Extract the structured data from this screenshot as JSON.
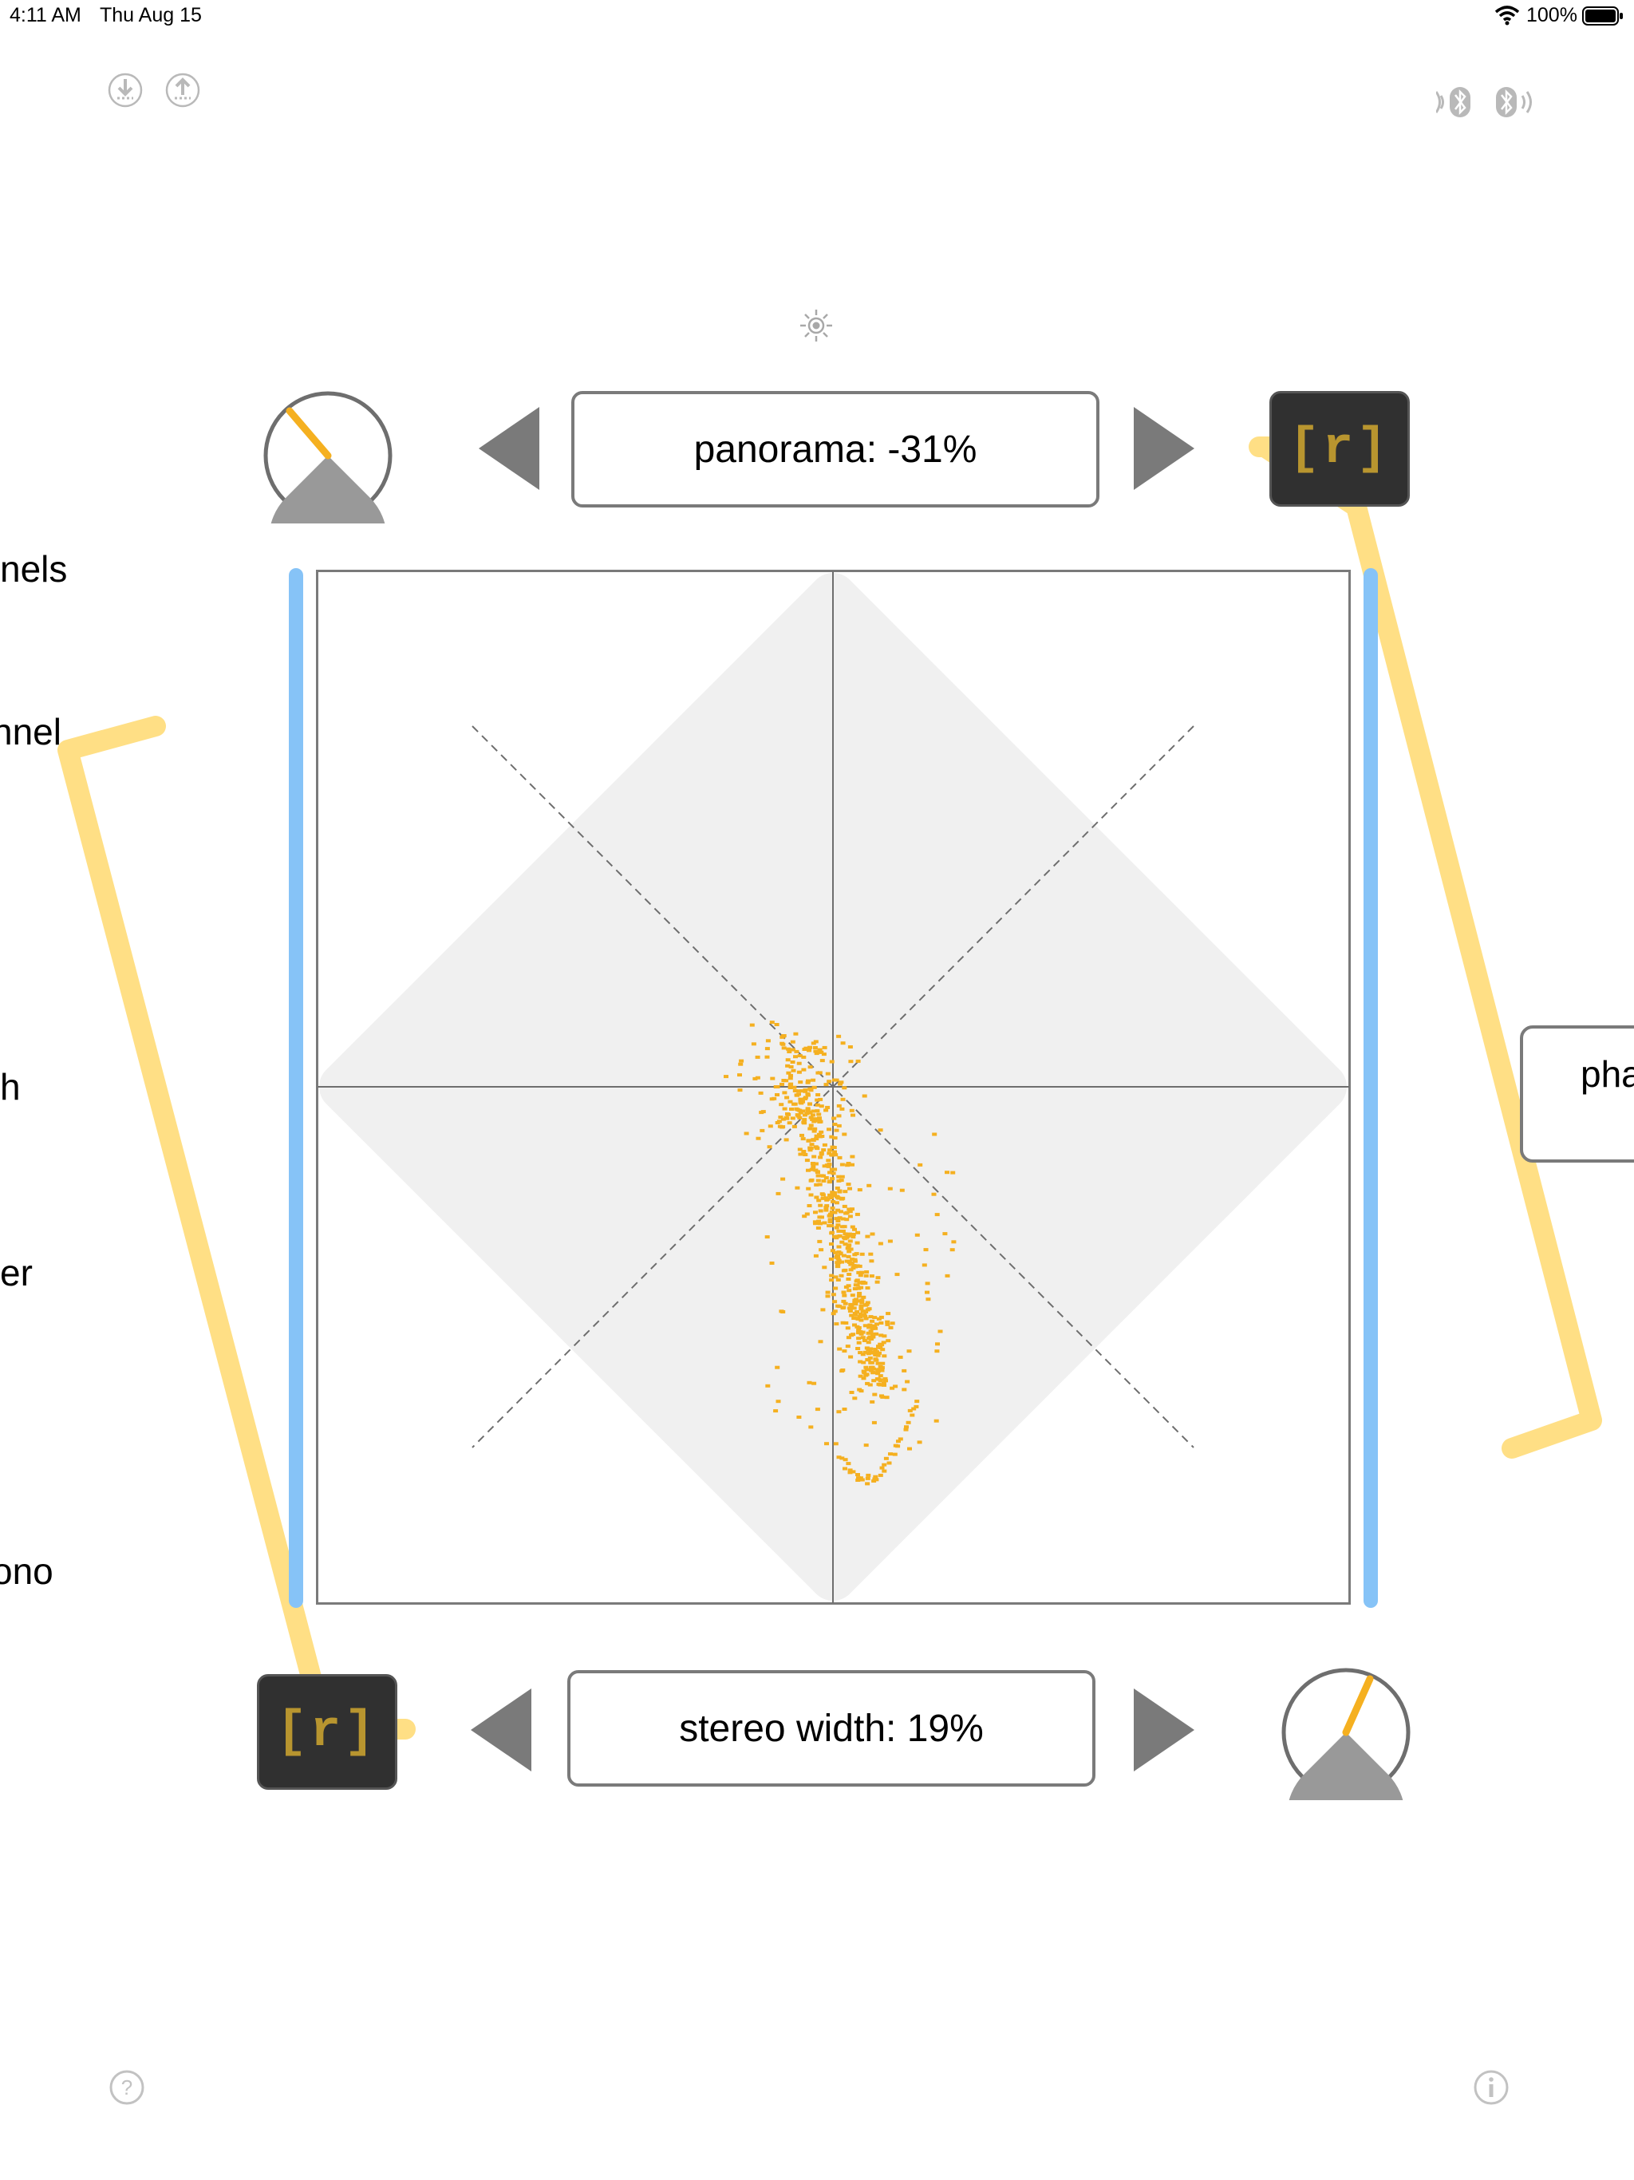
{
  "status_bar": {
    "time": "4:11 AM",
    "date": "Thu Aug 15",
    "battery": "100%",
    "icons": [
      "wifi-icon",
      "battery-icon"
    ]
  },
  "top_icons": [
    "import-icon",
    "export-icon",
    "brightness-icon",
    "bluetooth-midi-in-icon",
    "bluetooth-midi-out-icon"
  ],
  "panorama": {
    "label": "panorama: -31%",
    "value_percent": -31
  },
  "stereo_width": {
    "label": "stereo width: 19%",
    "value_percent": 19
  },
  "reset_button_label": "[r]",
  "left_labels": [
    "nels",
    "nnel",
    "h",
    "er",
    "ono"
  ],
  "right_label": "pha",
  "bottom_icons": [
    "help-icon",
    "info-icon"
  ],
  "colors": {
    "accent_yellow": "#f5b020",
    "bracket_yellow": "#ffdf85",
    "meter_blue": "#86c3f7",
    "knob_gray": "#999999",
    "arrow_gray": "#7a7a7a",
    "button_dark": "#303030",
    "reset_text": "#b8952f"
  }
}
